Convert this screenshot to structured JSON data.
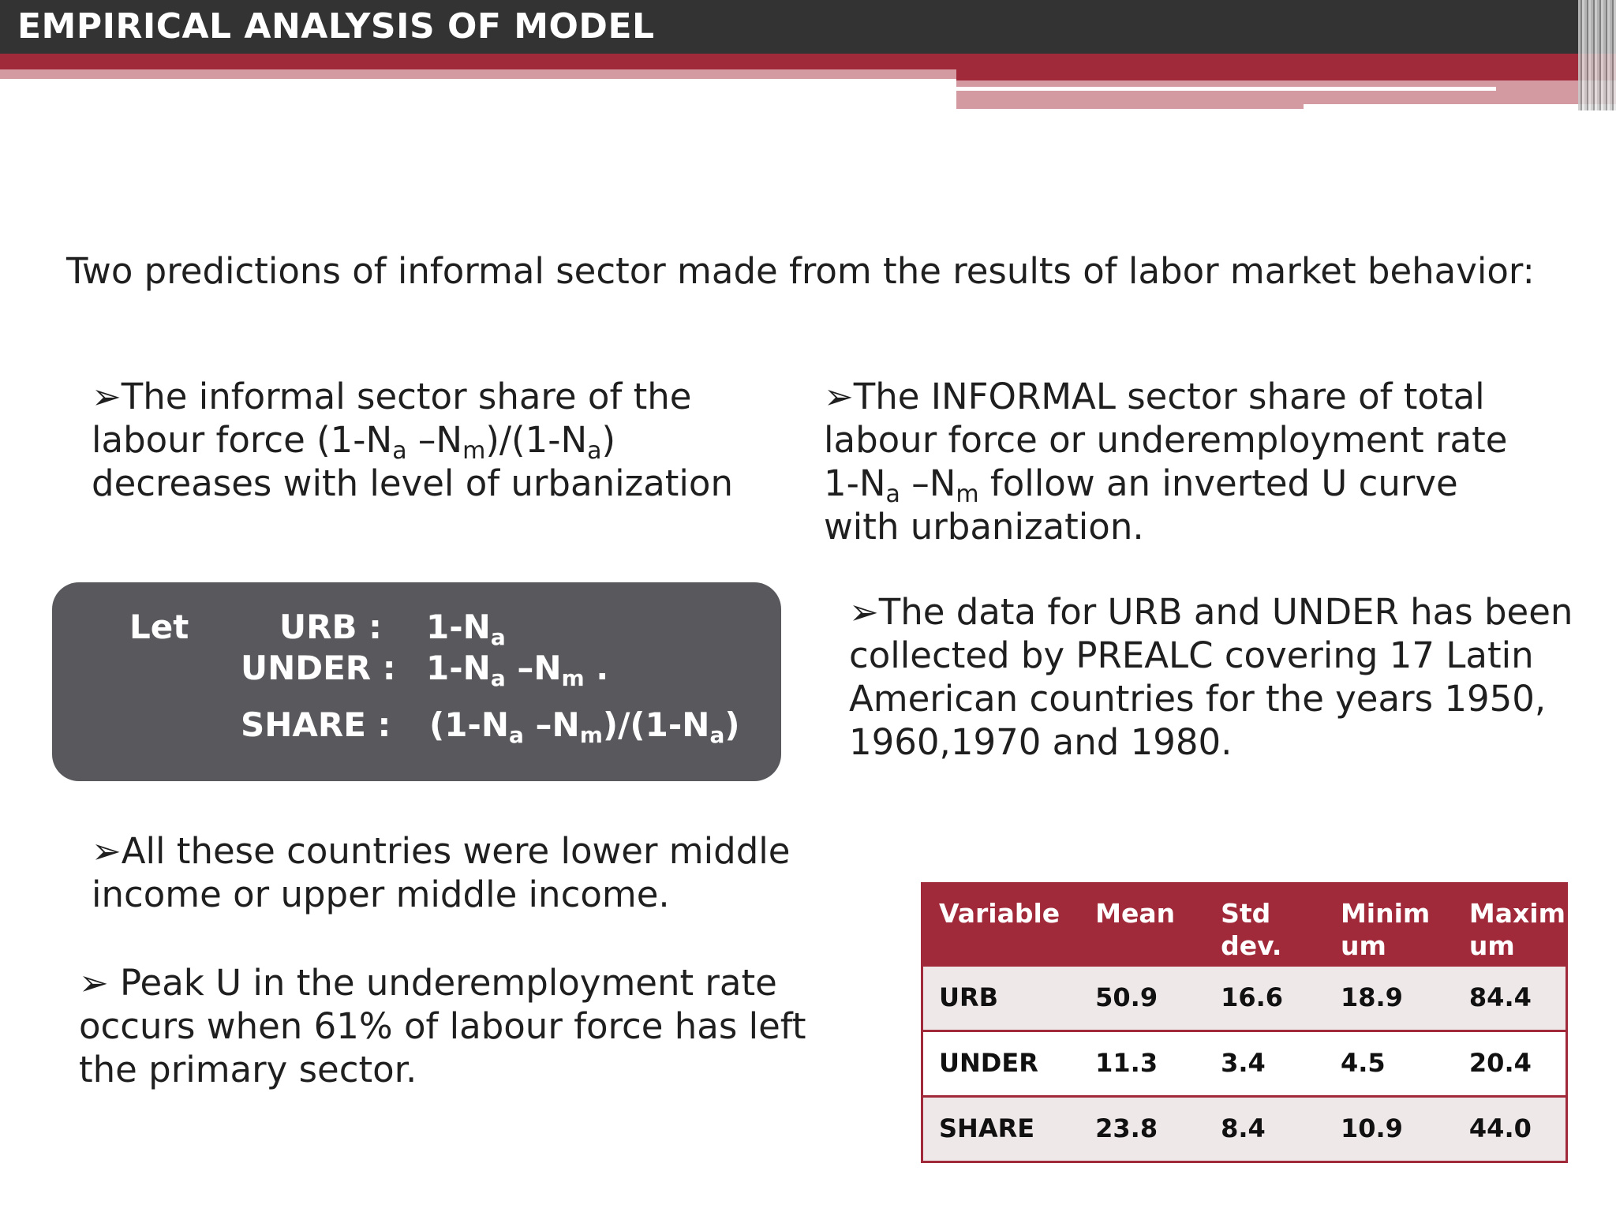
{
  "header": {
    "title": "EMPIRICAL ANALYSIS OF MODEL"
  },
  "intro": "Two predictions of informal sector  made from the results of labor market behavior:",
  "bullets": {
    "b1": {
      "l1": "➢The informal sector share of the",
      "l2a": "labour  force (1-N",
      "l2b": "a",
      "l2c": " –N",
      "l2d": "m",
      "l2e": ")/(1-N",
      "l2f": "a",
      "l2g": ")",
      "l3": "decreases with level of urbanization"
    },
    "b2": {
      "l1": "➢The INFORMAL sector share of total",
      "l2": "labour force or underemployment rate",
      "l3a": "1-N",
      "l3b": "a",
      "l3c": " –N",
      "l3d": "m",
      "l3e": "  follow an inverted U curve",
      "l4": "with urbanization."
    },
    "b3": {
      "l1": "➢The data for URB and UNDER has been",
      "l2": "collected by PREALC covering 17 Latin",
      "l3": "American countries for the years 1950,",
      "l4": "1960,1970 and 1980."
    },
    "b4": {
      "l1": "➢All these countries were lower middle",
      "l2": "income or upper middle income."
    },
    "b5": {
      "l1": "➢ Peak U in the underemployment rate",
      "l2": "occurs when 61% of labour force has left",
      "l3": "the primary sector."
    }
  },
  "definitions": {
    "let": "Let",
    "urb_label": "URB :",
    "urb_v1": "1-N",
    "urb_v2": "a",
    "under_label": "UNDER :",
    "under_v1": "1-N",
    "under_v2": "a",
    "under_v3": " –N",
    "under_v4": "m",
    "under_v5": "  .",
    "share_label": "SHARE  :",
    "share_v1": "(1-N",
    "share_v2": "a",
    "share_v3": " –N",
    "share_v4": "m",
    "share_v5": ")/(1-N",
    "share_v6": "a",
    "share_v7": ")"
  },
  "table": {
    "headers": {
      "variable": "Variable",
      "mean": "Mean",
      "std_1": "Std",
      "std_2": "dev.",
      "min_1": "Minim",
      "min_2": "um",
      "max_1": "Maxim",
      "max_2": "um"
    },
    "rows": [
      {
        "variable": "URB",
        "mean": "50.9",
        "std": "16.6",
        "min": "18.9",
        "max": "84.4"
      },
      {
        "variable": "UNDER",
        "mean": "11.3",
        "std": "3.4",
        "min": "4.5",
        "max": "20.4"
      },
      {
        "variable": "SHARE",
        "mean": "23.8",
        "std": "8.4",
        "min": "10.9",
        "max": "44.0"
      }
    ]
  }
}
